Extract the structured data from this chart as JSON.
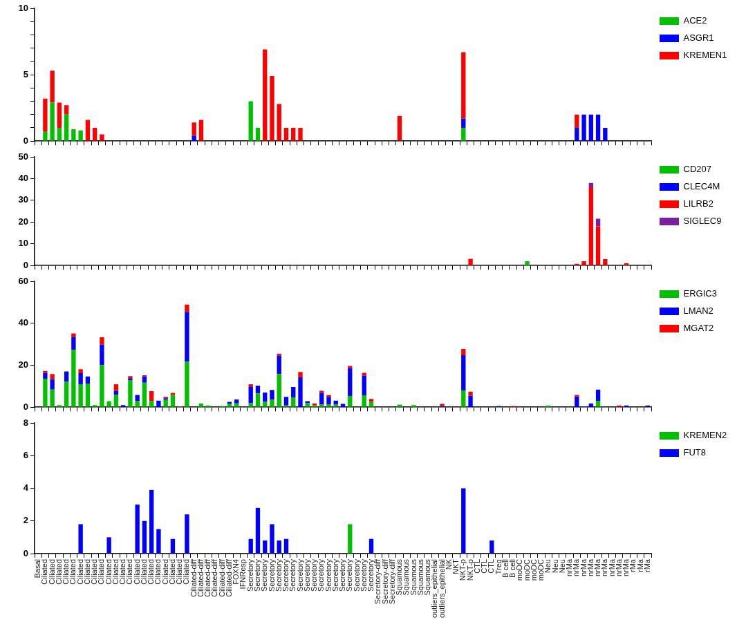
{
  "chart_data": [
    {
      "type": "bar",
      "stacked": true,
      "legend": "right",
      "tick_labels": "y",
      "ylim": [
        0,
        10
      ],
      "yticks": [
        0,
        {
          "value": 1,
          "label": null
        },
        {
          "value": 2,
          "label": null
        },
        {
          "value": 3,
          "label": null
        },
        {
          "value": 4,
          "label": null
        },
        5,
        {
          "value": 6,
          "label": null
        },
        {
          "value": 7,
          "label": null
        },
        {
          "value": 8,
          "label": null
        },
        {
          "value": 9,
          "label": null
        },
        10
      ],
      "categories": [
        null,
        null,
        null,
        null,
        null,
        null,
        null,
        null,
        null,
        null,
        null,
        null,
        null,
        null,
        null,
        null,
        null,
        null,
        null,
        null,
        null,
        null,
        null,
        null,
        null,
        null,
        null,
        null,
        null,
        null,
        null,
        null,
        null,
        null,
        null,
        null,
        null,
        null,
        null,
        null,
        null,
        null,
        null,
        null,
        null,
        null,
        null,
        null,
        null,
        null,
        null,
        null,
        null,
        null,
        null,
        null,
        null,
        null,
        null,
        null,
        null,
        null,
        null,
        null,
        null,
        null,
        null,
        null,
        null,
        null,
        null,
        null,
        null,
        null,
        null,
        null,
        null,
        null,
        null,
        null,
        null,
        null,
        null,
        null,
        null,
        null,
        null
      ],
      "series": [
        {
          "name": "ACE2",
          "color": "#00c000",
          "values": [
            null,
            0.7,
            2.9,
            1.0,
            2.0,
            0.9,
            0.8,
            null,
            null,
            null,
            null,
            null,
            null,
            null,
            null,
            null,
            null,
            null,
            null,
            null,
            null,
            null,
            null,
            null,
            null,
            null,
            null,
            null,
            null,
            null,
            3.0,
            1.0,
            null,
            null,
            null,
            null,
            null,
            null,
            null,
            null,
            null,
            null,
            null,
            null,
            null,
            null,
            null,
            null,
            null,
            null,
            null,
            null,
            null,
            null,
            null,
            null,
            null,
            null,
            null,
            null,
            1.0,
            null,
            null,
            null,
            null,
            null,
            null,
            null,
            null,
            null,
            null,
            null,
            null,
            null,
            null,
            null,
            null,
            null,
            null,
            null,
            null,
            null,
            null,
            null,
            null,
            null,
            null
          ]
        },
        {
          "name": "ASGR1",
          "color": "#0000ff",
          "values": [
            null,
            null,
            null,
            null,
            null,
            null,
            null,
            null,
            null,
            null,
            null,
            null,
            null,
            null,
            null,
            null,
            null,
            null,
            null,
            null,
            null,
            null,
            0.4,
            null,
            null,
            null,
            null,
            null,
            null,
            null,
            null,
            null,
            null,
            null,
            null,
            null,
            null,
            null,
            null,
            null,
            null,
            null,
            null,
            null,
            null,
            null,
            null,
            null,
            null,
            null,
            null,
            null,
            null,
            null,
            null,
            null,
            null,
            null,
            null,
            null,
            0.7,
            null,
            null,
            null,
            null,
            null,
            null,
            null,
            null,
            null,
            null,
            null,
            null,
            null,
            null,
            null,
            1.0,
            2.0,
            2.0,
            2.0,
            1.0,
            null,
            null,
            null,
            null,
            null,
            null
          ]
        },
        {
          "name": "KREMEN1",
          "color": "#ff0000",
          "values": [
            null,
            2.5,
            2.4,
            1.9,
            0.7,
            null,
            null,
            1.6,
            1.0,
            0.5,
            null,
            null,
            null,
            null,
            null,
            null,
            null,
            null,
            null,
            null,
            null,
            null,
            1.0,
            1.6,
            null,
            null,
            null,
            null,
            null,
            null,
            null,
            null,
            6.9,
            4.9,
            2.8,
            1.0,
            1.0,
            1.0,
            null,
            null,
            null,
            null,
            null,
            null,
            null,
            null,
            null,
            null,
            null,
            null,
            null,
            1.9,
            null,
            null,
            null,
            null,
            null,
            null,
            null,
            null,
            5.0,
            null,
            null,
            null,
            null,
            null,
            null,
            null,
            null,
            null,
            null,
            null,
            null,
            null,
            null,
            null,
            1.0,
            null,
            null,
            null,
            null,
            null,
            null,
            null,
            null,
            null,
            null
          ]
        }
      ]
    },
    {
      "type": "bar",
      "stacked": true,
      "legend": "right",
      "tick_labels": "y",
      "ylim": [
        0,
        50
      ],
      "yticks": [
        0,
        10,
        20,
        30,
        40,
        50
      ],
      "categories": [
        null,
        null,
        null,
        null,
        null,
        null,
        null,
        null,
        null,
        null,
        null,
        null,
        null,
        null,
        null,
        null,
        null,
        null,
        null,
        null,
        null,
        null,
        null,
        null,
        null,
        null,
        null,
        null,
        null,
        null,
        null,
        null,
        null,
        null,
        null,
        null,
        null,
        null,
        null,
        null,
        null,
        null,
        null,
        null,
        null,
        null,
        null,
        null,
        null,
        null,
        null,
        null,
        null,
        null,
        null,
        null,
        null,
        null,
        null,
        null,
        null,
        null,
        null,
        null,
        null,
        null,
        null,
        null,
        null,
        null,
        null,
        null,
        null,
        null,
        null,
        null,
        null,
        null,
        null,
        null,
        null,
        null,
        null,
        null,
        null,
        null,
        null
      ],
      "series": [
        {
          "name": "CD207",
          "color": "#00c000",
          "values": [
            null,
            null,
            null,
            null,
            null,
            null,
            null,
            null,
            null,
            null,
            null,
            null,
            null,
            null,
            null,
            null,
            null,
            null,
            null,
            null,
            null,
            null,
            null,
            null,
            null,
            null,
            null,
            null,
            null,
            null,
            null,
            null,
            null,
            null,
            null,
            null,
            null,
            null,
            null,
            null,
            null,
            null,
            null,
            null,
            null,
            null,
            null,
            null,
            null,
            null,
            null,
            null,
            null,
            null,
            null,
            null,
            null,
            null,
            null,
            null,
            null,
            null,
            null,
            null,
            null,
            null,
            null,
            null,
            null,
            2.0,
            null,
            null,
            null,
            null,
            null,
            null,
            null,
            null,
            null,
            null,
            null,
            null,
            null,
            null,
            null,
            null,
            null
          ]
        },
        {
          "name": "CLEC4M",
          "color": "#0000ff",
          "values": [
            null,
            null,
            null,
            null,
            null,
            null,
            null,
            null,
            null,
            null,
            null,
            null,
            null,
            null,
            null,
            null,
            null,
            null,
            null,
            null,
            null,
            null,
            null,
            null,
            null,
            null,
            null,
            null,
            null,
            null,
            null,
            null,
            null,
            null,
            null,
            null,
            null,
            null,
            null,
            null,
            null,
            null,
            null,
            null,
            null,
            null,
            null,
            null,
            null,
            null,
            null,
            null,
            null,
            null,
            null,
            null,
            null,
            null,
            null,
            null,
            null,
            null,
            null,
            null,
            null,
            null,
            null,
            null,
            null,
            null,
            null,
            null,
            null,
            null,
            null,
            null,
            null,
            null,
            null,
            null,
            null,
            null,
            null,
            null,
            null,
            null,
            null
          ]
        },
        {
          "name": "LILRB2",
          "color": "#ff0000",
          "values": [
            null,
            null,
            null,
            null,
            null,
            null,
            null,
            null,
            null,
            null,
            null,
            null,
            null,
            null,
            null,
            null,
            null,
            null,
            null,
            null,
            null,
            null,
            null,
            null,
            null,
            null,
            null,
            null,
            null,
            null,
            null,
            null,
            null,
            null,
            null,
            null,
            null,
            null,
            null,
            null,
            null,
            null,
            null,
            null,
            null,
            null,
            null,
            null,
            null,
            null,
            null,
            null,
            null,
            null,
            null,
            null,
            null,
            null,
            null,
            null,
            null,
            3.1,
            null,
            null,
            null,
            null,
            null,
            null,
            null,
            null,
            null,
            null,
            null,
            null,
            null,
            null,
            0.8,
            2.0,
            36,
            18,
            2.9,
            null,
            null,
            1.0,
            null,
            null,
            null
          ]
        },
        {
          "name": "SIGLEC9",
          "color": "#7a1fa2",
          "values": [
            null,
            null,
            null,
            null,
            null,
            null,
            null,
            null,
            null,
            null,
            null,
            null,
            null,
            null,
            null,
            null,
            null,
            null,
            null,
            null,
            null,
            null,
            null,
            null,
            null,
            null,
            null,
            null,
            null,
            null,
            null,
            null,
            null,
            null,
            null,
            null,
            0.3,
            null,
            null,
            null,
            null,
            null,
            null,
            null,
            null,
            null,
            null,
            null,
            null,
            null,
            null,
            null,
            null,
            null,
            null,
            null,
            null,
            null,
            null,
            null,
            null,
            null,
            null,
            null,
            null,
            null,
            null,
            null,
            null,
            null,
            null,
            null,
            null,
            null,
            null,
            null,
            null,
            null,
            2,
            3.5,
            null,
            null,
            null,
            null,
            null,
            null,
            null
          ]
        }
      ]
    },
    {
      "type": "bar",
      "stacked": true,
      "legend": "right",
      "tick_labels": "y",
      "ylim": [
        0,
        60
      ],
      "yticks": [
        0,
        20,
        40,
        60
      ],
      "categories": [
        null,
        null,
        null,
        null,
        null,
        null,
        null,
        null,
        null,
        null,
        null,
        null,
        null,
        null,
        null,
        null,
        null,
        null,
        null,
        null,
        null,
        null,
        null,
        null,
        null,
        null,
        null,
        null,
        null,
        null,
        null,
        null,
        null,
        null,
        null,
        null,
        null,
        null,
        null,
        null,
        null,
        null,
        null,
        null,
        null,
        null,
        null,
        null,
        null,
        null,
        null,
        null,
        null,
        null,
        null,
        null,
        null,
        null,
        null,
        null,
        null,
        null,
        null,
        null,
        null,
        null,
        null,
        null,
        null,
        null,
        null,
        null,
        null,
        null,
        null,
        null,
        null,
        null,
        null,
        null,
        null,
        null,
        null,
        null,
        null,
        null,
        null
      ],
      "series": [
        {
          "name": "ERGIC3",
          "color": "#00c000",
          "values": [
            null,
            13.6,
            8.4,
            1.0,
            12.1,
            27.3,
            10.9,
            11.3,
            1.0,
            20.1,
            2.9,
            5.8,
            null,
            12.9,
            2.9,
            11.7,
            2.9,
            null,
            3.7,
            5.8,
            null,
            21.6,
            null,
            1.8,
            0.8,
            null,
            0.6,
            1.6,
            1.8,
            null,
            1.9,
            6.6,
            2.5,
            3.5,
            15.8,
            0.8,
            4.7,
            null,
            1.9,
            0.8,
            1.2,
            1.4,
            1.2,
            null,
            5.3,
            null,
            5.7,
            2.5,
            null,
            null,
            null,
            1.2,
            null,
            1.0,
            null,
            null,
            null,
            null,
            null,
            null,
            8.0,
            null,
            null,
            null,
            null,
            null,
            null,
            null,
            null,
            null,
            null,
            null,
            0.8,
            null,
            null,
            null,
            null,
            null,
            null,
            2.9,
            null,
            null,
            null,
            null,
            null,
            null,
            null
          ]
        },
        {
          "name": "LMAN2",
          "color": "#0000ff",
          "values": [
            null,
            2.8,
            4.9,
            null,
            4.9,
            6.0,
            5.3,
            3.3,
            null,
            9.7,
            null,
            2.0,
            1.0,
            0.9,
            2.9,
            2.9,
            null,
            3.1,
            0.6,
            null,
            null,
            23.8,
            null,
            null,
            null,
            null,
            null,
            0.9,
            1.9,
            null,
            8.0,
            3.7,
            4.5,
            4.7,
            8.8,
            4.1,
            4.9,
            14.2,
            1.0,
            null,
            5.6,
            3.5,
            1.9,
            1.6,
            13.4,
            null,
            9.3,
            null,
            null,
            null,
            null,
            null,
            null,
            null,
            null,
            null,
            null,
            0.6,
            null,
            null,
            16.8,
            5.5,
            null,
            null,
            null,
            0.6,
            null,
            null,
            null,
            null,
            null,
            null,
            null,
            null,
            null,
            null,
            5.1,
            0.4,
            1.8,
            5.5,
            null,
            null,
            null,
            0.8,
            null,
            null,
            0.8
          ]
        },
        {
          "name": "MGAT2",
          "color": "#ff0000",
          "values": [
            null,
            0.9,
            2.5,
            null,
            null,
            1.8,
            1.9,
            null,
            null,
            3.5,
            null,
            3.1,
            null,
            1.0,
            null,
            0.6,
            4.7,
            null,
            0.6,
            1.0,
            0.4,
            3.5,
            null,
            null,
            null,
            null,
            null,
            null,
            null,
            null,
            1.0,
            null,
            null,
            null,
            0.9,
            null,
            null,
            2.6,
            null,
            1.0,
            1.0,
            0.9,
            null,
            null,
            1.0,
            null,
            1.4,
            1.4,
            null,
            null,
            null,
            null,
            null,
            null,
            null,
            null,
            null,
            1.0,
            null,
            null,
            2.9,
            1.9,
            null,
            null,
            null,
            null,
            null,
            0.6,
            null,
            null,
            null,
            null,
            null,
            null,
            null,
            null,
            0.7,
            null,
            null,
            null,
            null,
            null,
            0.8,
            null,
            null,
            null,
            null
          ]
        }
      ]
    },
    {
      "type": "bar",
      "stacked": true,
      "legend": "right",
      "ylim": [
        0,
        8
      ],
      "yticks": [
        0,
        2,
        4,
        6,
        8
      ],
      "categories": [
        "Basal",
        "Ciliated",
        "Ciliated",
        "Ciliated",
        "Ciliated",
        "Ciliated",
        "Ciliated",
        "Ciliated",
        "Ciliated",
        "Ciliated",
        "Ciliated",
        "Ciliated",
        "Ciliated",
        "Ciliated",
        "Ciliated",
        "Ciliated",
        "Ciliated",
        "Ciliated",
        "Ciliated",
        "Ciliated",
        "Ciliated",
        "Ciliated",
        "Ciliated-diff",
        "Ciliated-diff",
        "Ciliated-diff",
        "Ciliated-diff",
        "Ciliated-diff",
        "Ciliated-diff",
        "FOXN4",
        "IFNResp",
        "Secretory",
        "Secretory",
        "Secretory",
        "Secretory",
        "Secretory",
        "Secretory",
        "Secretory",
        "Secretory",
        "Secretory",
        "Secretory",
        "Secretory",
        "Secretory",
        "Secretory",
        "Secretory",
        "Secretory",
        "Secretory",
        "Secretory",
        "Secretory",
        "Secretory-diff",
        "Secretory-diff",
        "Secretory-diff",
        "Squamous",
        "Squamous",
        "Squamous",
        "Squamous",
        "Squamous",
        "outliers_epithelial",
        "outliers_epithelial",
        "NK",
        "NKT",
        "NKT-p",
        "NKT-p",
        "CTL",
        "CTL",
        "CTL",
        "Treg",
        "B cell",
        "B cell",
        "moDC",
        "moDC",
        "moDC",
        "moDC",
        "Neu",
        "Neu",
        "Neu",
        "nrMa",
        "nrMa",
        "nrMa",
        "nrMa",
        "nrMa",
        "nrMa",
        "nrMa",
        "nrMa",
        "nrMa",
        "rMa",
        "rMa",
        "rMa"
      ],
      "series": [
        {
          "name": "KREMEN2",
          "color": "#00c000",
          "values": [
            null,
            null,
            null,
            null,
            null,
            null,
            null,
            null,
            null,
            null,
            null,
            null,
            null,
            null,
            null,
            null,
            null,
            null,
            null,
            null,
            null,
            null,
            null,
            null,
            null,
            null,
            null,
            null,
            null,
            null,
            null,
            null,
            null,
            null,
            null,
            null,
            null,
            null,
            null,
            null,
            null,
            null,
            null,
            null,
            1.8,
            null,
            null,
            null,
            null,
            null,
            null,
            null,
            null,
            null,
            null,
            null,
            null,
            null,
            null,
            null,
            null,
            null,
            null,
            null,
            null,
            null,
            null,
            null,
            null,
            null,
            null,
            null,
            null,
            null,
            null,
            null,
            null,
            null,
            null,
            null,
            null,
            null,
            null,
            null,
            null,
            null,
            null
          ]
        },
        {
          "name": "FUT8",
          "color": "#0000ff",
          "values": [
            null,
            null,
            null,
            null,
            null,
            null,
            1.8,
            null,
            null,
            null,
            1.0,
            null,
            null,
            null,
            3.0,
            2.0,
            3.9,
            1.5,
            null,
            0.9,
            null,
            2.4,
            null,
            null,
            null,
            null,
            null,
            null,
            null,
            null,
            0.9,
            2.8,
            0.8,
            1.8,
            0.8,
            0.9,
            null,
            null,
            null,
            null,
            null,
            null,
            null,
            null,
            null,
            null,
            null,
            0.9,
            null,
            null,
            null,
            null,
            null,
            null,
            null,
            null,
            null,
            null,
            null,
            null,
            4.0,
            null,
            null,
            null,
            0.8,
            null,
            null,
            null,
            null,
            null,
            null,
            null,
            null,
            null,
            null,
            null,
            null,
            null,
            null,
            null,
            null,
            null,
            null,
            null,
            null,
            null,
            null
          ]
        }
      ]
    }
  ]
}
